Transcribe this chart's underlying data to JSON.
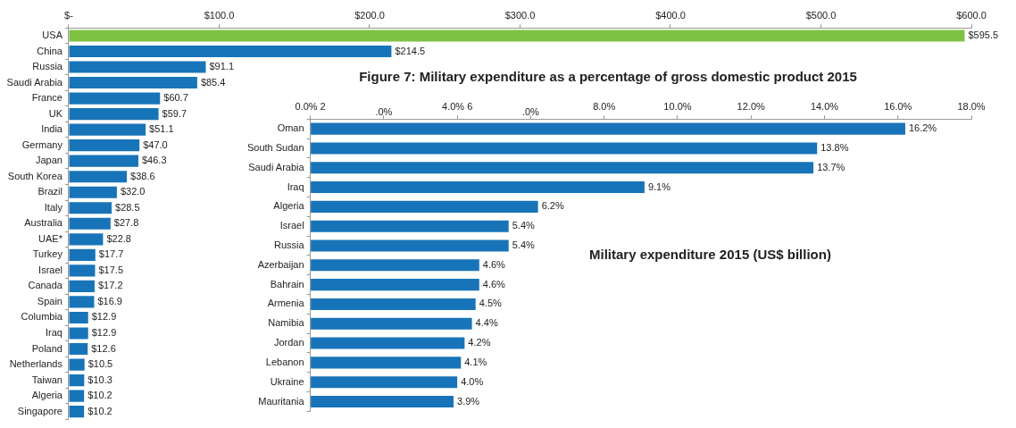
{
  "chart_data": [
    {
      "type": "bar",
      "orientation": "horizontal",
      "title": "Military expenditure 2015 (US$ billion)",
      "categories": [
        "USA",
        "China",
        "Russia",
        "Saudi Arabia",
        "France",
        "UK",
        "India",
        "Germany",
        "Japan",
        "South Korea",
        "Brazil",
        "Italy",
        "Australia",
        "UAE*",
        "Turkey",
        "Israel",
        "Canada",
        "Spain",
        "Columbia",
        "Iraq",
        "Poland",
        "Netherlands",
        "Taiwan",
        "Algeria",
        "Singapore"
      ],
      "values": [
        595.5,
        214.5,
        91.1,
        85.4,
        60.7,
        59.7,
        51.1,
        47.0,
        46.3,
        38.6,
        32.0,
        28.5,
        27.8,
        22.8,
        17.7,
        17.5,
        17.2,
        16.9,
        12.9,
        12.9,
        12.6,
        10.5,
        10.3,
        10.2,
        10.2
      ],
      "value_labels": [
        "$595.5",
        "$214.5",
        "$91.1",
        "$85.4",
        "$60.7",
        "$59.7",
        "$51.1",
        "$47.0",
        "$46.3",
        "$38.6",
        "$32.0",
        "$28.5",
        "$27.8",
        "$22.8",
        "$17.7",
        "$17.5",
        "$17.2",
        "$16.9",
        "$12.9",
        "$12.9",
        "$12.6",
        "$10.5",
        "$10.3",
        "$10.2",
        "$10.2"
      ],
      "colors": [
        "#7dc242",
        "#1874b8",
        "#1874b8",
        "#1874b8",
        "#1874b8",
        "#1874b8",
        "#1874b8",
        "#1874b8",
        "#1874b8",
        "#1874b8",
        "#1874b8",
        "#1874b8",
        "#1874b8",
        "#1874b8",
        "#1874b8",
        "#1874b8",
        "#1874b8",
        "#1874b8",
        "#1874b8",
        "#1874b8",
        "#1874b8",
        "#1874b8",
        "#1874b8",
        "#1874b8",
        "#1874b8"
      ],
      "xlim": [
        0,
        600
      ],
      "xticks": [
        {
          "value": 0,
          "label": "$-"
        },
        {
          "value": 100,
          "label": "$100.0"
        },
        {
          "value": 200,
          "label": "$200.0"
        },
        {
          "value": 300,
          "label": "$300.0"
        },
        {
          "value": 400,
          "label": "$400.0"
        },
        {
          "value": 500,
          "label": "$500.0"
        },
        {
          "value": 600,
          "label": "$600.0"
        }
      ]
    },
    {
      "type": "bar",
      "orientation": "horizontal",
      "title": "Figure 7: Military expenditure as a percentage of gross domestic product 2015",
      "categories": [
        "Oman",
        "South Sudan",
        "Saudi Arabia",
        "Iraq",
        "Algeria",
        "Israel",
        "Russia",
        "Azerbaijan",
        "Bahrain",
        "Armenia",
        "Namibia",
        "Jordan",
        "Lebanon",
        "Ukraine",
        "Mauritania"
      ],
      "values": [
        16.2,
        13.8,
        13.7,
        9.1,
        6.2,
        5.4,
        5.4,
        4.6,
        4.6,
        4.5,
        4.4,
        4.2,
        4.1,
        4.0,
        3.9
      ],
      "value_labels": [
        "16.2%",
        "13.8%",
        "13.7%",
        "9.1%",
        "6.2%",
        "5.4%",
        "5.4%",
        "4.6%",
        "4.6%",
        "4.5%",
        "4.4%",
        "4.2%",
        "4.1%",
        "4.0%",
        "3.9%"
      ],
      "color": "#1874b8",
      "annotations": [
        ".0%",
        ".0%"
      ],
      "xlim": [
        0,
        18
      ],
      "xticks": [
        {
          "value": 0,
          "label": "0.0% 2"
        },
        {
          "value": 2,
          "label": null
        },
        {
          "value": 4,
          "label": "4.0% 6"
        },
        {
          "value": 6,
          "label": null
        },
        {
          "value": 8,
          "label": "8.0%"
        },
        {
          "value": 10,
          "label": "10.0%"
        },
        {
          "value": 12,
          "label": "12.0%"
        },
        {
          "value": 14,
          "label": "14.0%"
        },
        {
          "value": 16,
          "label": "16.0%"
        },
        {
          "value": 18,
          "label": "18.0%"
        }
      ]
    }
  ]
}
